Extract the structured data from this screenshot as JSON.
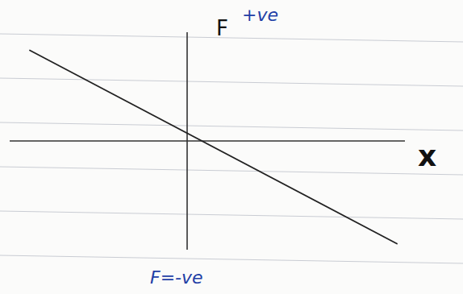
{
  "chart_data": {
    "type": "line",
    "x_label": "x",
    "y_label": "F",
    "annotations": [
      "+ve",
      "F=-ve"
    ],
    "x": [
      -3.9,
      5.2
    ],
    "values": [
      2.25,
      -2.55
    ],
    "xlim": [
      -4.4,
      5.4
    ],
    "ylim": [
      -2.7,
      2.7
    ],
    "tick_labels": false,
    "color": "#222222"
  }
}
